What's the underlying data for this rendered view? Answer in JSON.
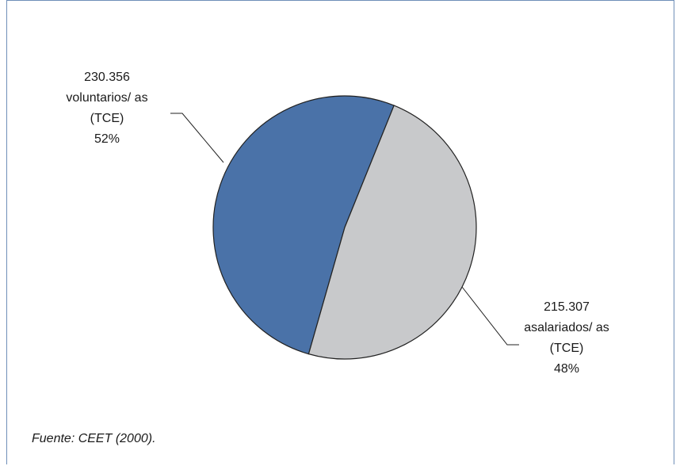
{
  "chart_data": {
    "type": "pie",
    "slices": [
      {
        "value": 230356,
        "value_label": "230.356",
        "name_lines": [
          "voluntarios/ as",
          "(TCE)"
        ],
        "percent_label": "52%",
        "color": "#4a72a8"
      },
      {
        "value": 215307,
        "value_label": "215.307",
        "name_lines": [
          "asalariados/ as",
          "(TCE)"
        ],
        "percent_label": "48%",
        "color": "#c8c9cb"
      }
    ]
  },
  "source": "Fuente: CEET (2000)."
}
